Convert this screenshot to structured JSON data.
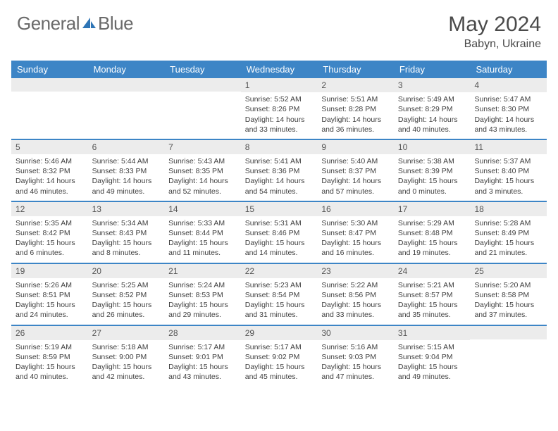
{
  "logo": {
    "word1": "General",
    "word2": "Blue"
  },
  "title": "May 2024",
  "location": "Babyn, Ukraine",
  "colors": {
    "header_bg": "#3d85c6",
    "header_text": "#ffffff",
    "row_border": "#3d85c6",
    "daynum_bg": "#ececec",
    "body_text": "#404040",
    "logo_text": "#6a6a6a",
    "logo_accent": "#2e75b6"
  },
  "day_names": [
    "Sunday",
    "Monday",
    "Tuesday",
    "Wednesday",
    "Thursday",
    "Friday",
    "Saturday"
  ],
  "weeks": [
    [
      {
        "n": "",
        "sr": "",
        "ss": "",
        "dl": ""
      },
      {
        "n": "",
        "sr": "",
        "ss": "",
        "dl": ""
      },
      {
        "n": "",
        "sr": "",
        "ss": "",
        "dl": ""
      },
      {
        "n": "1",
        "sr": "5:52 AM",
        "ss": "8:26 PM",
        "dl": "14 hours and 33 minutes."
      },
      {
        "n": "2",
        "sr": "5:51 AM",
        "ss": "8:28 PM",
        "dl": "14 hours and 36 minutes."
      },
      {
        "n": "3",
        "sr": "5:49 AM",
        "ss": "8:29 PM",
        "dl": "14 hours and 40 minutes."
      },
      {
        "n": "4",
        "sr": "5:47 AM",
        "ss": "8:30 PM",
        "dl": "14 hours and 43 minutes."
      }
    ],
    [
      {
        "n": "5",
        "sr": "5:46 AM",
        "ss": "8:32 PM",
        "dl": "14 hours and 46 minutes."
      },
      {
        "n": "6",
        "sr": "5:44 AM",
        "ss": "8:33 PM",
        "dl": "14 hours and 49 minutes."
      },
      {
        "n": "7",
        "sr": "5:43 AM",
        "ss": "8:35 PM",
        "dl": "14 hours and 52 minutes."
      },
      {
        "n": "8",
        "sr": "5:41 AM",
        "ss": "8:36 PM",
        "dl": "14 hours and 54 minutes."
      },
      {
        "n": "9",
        "sr": "5:40 AM",
        "ss": "8:37 PM",
        "dl": "14 hours and 57 minutes."
      },
      {
        "n": "10",
        "sr": "5:38 AM",
        "ss": "8:39 PM",
        "dl": "15 hours and 0 minutes."
      },
      {
        "n": "11",
        "sr": "5:37 AM",
        "ss": "8:40 PM",
        "dl": "15 hours and 3 minutes."
      }
    ],
    [
      {
        "n": "12",
        "sr": "5:35 AM",
        "ss": "8:42 PM",
        "dl": "15 hours and 6 minutes."
      },
      {
        "n": "13",
        "sr": "5:34 AM",
        "ss": "8:43 PM",
        "dl": "15 hours and 8 minutes."
      },
      {
        "n": "14",
        "sr": "5:33 AM",
        "ss": "8:44 PM",
        "dl": "15 hours and 11 minutes."
      },
      {
        "n": "15",
        "sr": "5:31 AM",
        "ss": "8:46 PM",
        "dl": "15 hours and 14 minutes."
      },
      {
        "n": "16",
        "sr": "5:30 AM",
        "ss": "8:47 PM",
        "dl": "15 hours and 16 minutes."
      },
      {
        "n": "17",
        "sr": "5:29 AM",
        "ss": "8:48 PM",
        "dl": "15 hours and 19 minutes."
      },
      {
        "n": "18",
        "sr": "5:28 AM",
        "ss": "8:49 PM",
        "dl": "15 hours and 21 minutes."
      }
    ],
    [
      {
        "n": "19",
        "sr": "5:26 AM",
        "ss": "8:51 PM",
        "dl": "15 hours and 24 minutes."
      },
      {
        "n": "20",
        "sr": "5:25 AM",
        "ss": "8:52 PM",
        "dl": "15 hours and 26 minutes."
      },
      {
        "n": "21",
        "sr": "5:24 AM",
        "ss": "8:53 PM",
        "dl": "15 hours and 29 minutes."
      },
      {
        "n": "22",
        "sr": "5:23 AM",
        "ss": "8:54 PM",
        "dl": "15 hours and 31 minutes."
      },
      {
        "n": "23",
        "sr": "5:22 AM",
        "ss": "8:56 PM",
        "dl": "15 hours and 33 minutes."
      },
      {
        "n": "24",
        "sr": "5:21 AM",
        "ss": "8:57 PM",
        "dl": "15 hours and 35 minutes."
      },
      {
        "n": "25",
        "sr": "5:20 AM",
        "ss": "8:58 PM",
        "dl": "15 hours and 37 minutes."
      }
    ],
    [
      {
        "n": "26",
        "sr": "5:19 AM",
        "ss": "8:59 PM",
        "dl": "15 hours and 40 minutes."
      },
      {
        "n": "27",
        "sr": "5:18 AM",
        "ss": "9:00 PM",
        "dl": "15 hours and 42 minutes."
      },
      {
        "n": "28",
        "sr": "5:17 AM",
        "ss": "9:01 PM",
        "dl": "15 hours and 43 minutes."
      },
      {
        "n": "29",
        "sr": "5:17 AM",
        "ss": "9:02 PM",
        "dl": "15 hours and 45 minutes."
      },
      {
        "n": "30",
        "sr": "5:16 AM",
        "ss": "9:03 PM",
        "dl": "15 hours and 47 minutes."
      },
      {
        "n": "31",
        "sr": "5:15 AM",
        "ss": "9:04 PM",
        "dl": "15 hours and 49 minutes."
      },
      {
        "n": "",
        "sr": "",
        "ss": "",
        "dl": ""
      }
    ]
  ],
  "labels": {
    "sunrise": "Sunrise: ",
    "sunset": "Sunset: ",
    "daylight": "Daylight: "
  }
}
